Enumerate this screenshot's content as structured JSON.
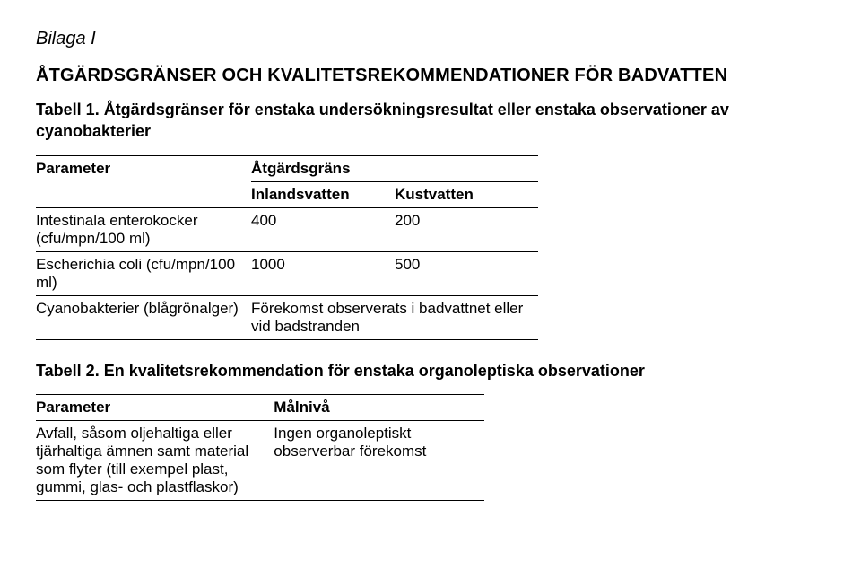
{
  "appendix": "Bilaga I",
  "mainHeading": "ÅTGÄRDSGRÄNSER OCH KVALITETSREKOMMENDATIONER FÖR BADVATTEN",
  "table1": {
    "caption": "Tabell 1. Åtgärdsgränser för enstaka undersökningsresultat eller enstaka observationer av cyanobakterier",
    "head": {
      "param": "Parameter",
      "limit": "Åtgärdsgräns",
      "inland": "Inlandsvatten",
      "coast": "Kustvatten"
    },
    "rows": {
      "r1": {
        "param": "Intestinala enterokocker (cfu/mpn/100 ml)",
        "v1": "400",
        "v2": "200"
      },
      "r2": {
        "param": "Escherichia coli (cfu/mpn/100 ml)",
        "v1": "1000",
        "v2": "500"
      },
      "r3": {
        "param": "Cyanobakterier (blågrönalger)",
        "obs": "Förekomst observerats i badvattnet eller vid badstranden"
      }
    }
  },
  "table2": {
    "caption": "Tabell 2. En kvalitetsrekommendation för enstaka organoleptiska observationer",
    "head": {
      "param": "Parameter",
      "target": "Målnivå"
    },
    "rows": {
      "r1": {
        "param": "Avfall, såsom oljehaltiga eller tjärhaltiga ämnen samt material som flyter (till exempel plast, gummi, glas- och plastflaskor)",
        "target": "Ingen organoleptiskt observerbar förekomst"
      }
    }
  }
}
